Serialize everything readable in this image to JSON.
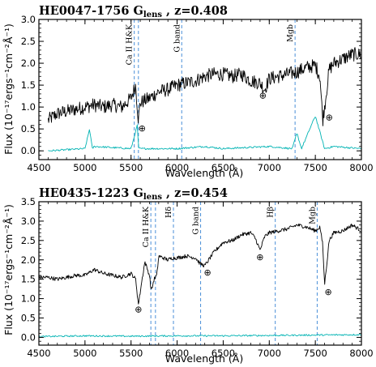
{
  "chart_data": [
    {
      "type": "line",
      "title": "HE0047-1756 G",
      "title_sub": "lens",
      "title_tail": " , z=0.408",
      "xlabel": "Wavelength (Å)",
      "ylabel": "Flux (10⁻¹⁷ergs⁻¹cm⁻²Å⁻¹)",
      "xlim": [
        4500,
        8000
      ],
      "ylim": [
        -0.2,
        3.0
      ],
      "xticks": [
        4500,
        5000,
        5500,
        6000,
        6500,
        7000,
        7500,
        8000
      ],
      "yticks": [
        0.0,
        0.5,
        1.0,
        1.5,
        2.0,
        2.5,
        3.0
      ],
      "x_tick_labels": [
        "4500",
        "5000",
        "5500",
        "6000",
        "6500",
        "7000",
        "7500",
        "8000"
      ],
      "y_tick_labels": [
        "0.0",
        "0.5",
        "1.0",
        "1.5",
        "2.0",
        "2.5",
        "3.0"
      ],
      "lines": [
        {
          "label": "Ca II H&K",
          "x": [
            5535,
            5580
          ]
        },
        {
          "label": "G band",
          "x": [
            6050
          ]
        },
        {
          "label": "Mgb",
          "x": [
            7280
          ]
        }
      ],
      "telluric": [
        {
          "symbol": "⊕",
          "x": 5620,
          "y": 0.45
        },
        {
          "symbol": "⊕",
          "x": 6930,
          "y": 1.2
        },
        {
          "symbol": "⊕",
          "x": 7650,
          "y": 0.7
        }
      ],
      "series": [
        {
          "role": "spectrum",
          "color": "#000000",
          "x": [
            4600,
            4700,
            4800,
            4900,
            5000,
            5100,
            5200,
            5300,
            5400,
            5500,
            5550,
            5580,
            5600,
            5700,
            5800,
            5900,
            6000,
            6100,
            6200,
            6300,
            6400,
            6500,
            6600,
            6700,
            6800,
            6900,
            6950,
            7000,
            7100,
            7200,
            7300,
            7400,
            7500,
            7550,
            7580,
            7600,
            7650,
            7700,
            7800,
            7900,
            8000
          ],
          "y": [
            0.7,
            0.85,
            0.9,
            0.95,
            1.0,
            1.05,
            1.0,
            1.05,
            1.0,
            1.2,
            1.5,
            0.7,
            1.1,
            1.2,
            1.35,
            1.4,
            1.5,
            1.55,
            1.6,
            1.7,
            1.75,
            1.75,
            1.7,
            1.75,
            1.6,
            1.55,
            1.4,
            1.65,
            1.7,
            1.75,
            1.8,
            1.9,
            1.95,
            1.7,
            0.7,
            1.0,
            1.85,
            2.0,
            2.1,
            2.2,
            2.2
          ]
        },
        {
          "role": "sky",
          "color": "#00b3b3",
          "x": [
            4600,
            5000,
            5050,
            5080,
            5100,
            5500,
            5570,
            5580,
            5600,
            6000,
            6300,
            6500,
            7000,
            7250,
            7300,
            7350,
            7500,
            7600,
            7700,
            8000
          ],
          "y": [
            0.0,
            0.05,
            0.5,
            0.05,
            0.1,
            0.05,
            0.6,
            0.05,
            0.05,
            0.05,
            0.1,
            0.05,
            0.1,
            0.05,
            0.4,
            0.05,
            0.8,
            0.05,
            0.1,
            0.05
          ]
        }
      ]
    },
    {
      "type": "line",
      "title": "HE0435-1223 G",
      "title_sub": "lens",
      "title_tail": " ,  z=0.454",
      "xlabel": "Wavelength (Å)",
      "ylabel": "Flux (10⁻¹⁷ergs⁻¹cm⁻²Å⁻¹)",
      "xlim": [
        4500,
        8000
      ],
      "ylim": [
        -0.2,
        3.5
      ],
      "xticks": [
        4500,
        5000,
        5500,
        6000,
        6500,
        7000,
        7500,
        8000
      ],
      "yticks": [
        0.0,
        0.5,
        1.0,
        1.5,
        2.0,
        2.5,
        3.0,
        3.5
      ],
      "x_tick_labels": [
        "4500",
        "5000",
        "5500",
        "6000",
        "6500",
        "7000",
        "7500",
        "8000"
      ],
      "y_tick_labels": [
        "0.0",
        "0.5",
        "1.0",
        "1.5",
        "2.0",
        "2.5",
        "3.0",
        "3.5"
      ],
      "lines": [
        {
          "label": "Ca II H&K",
          "x": [
            5715,
            5765
          ]
        },
        {
          "label": "Hδ",
          "x": [
            5960
          ]
        },
        {
          "label": "G band",
          "x": [
            6255
          ]
        },
        {
          "label": "Hβ",
          "x": [
            7065
          ]
        },
        {
          "label": "Mgb",
          "x": [
            7520
          ]
        }
      ],
      "telluric": [
        {
          "symbol": "⊕",
          "x": 5580,
          "y": 0.65
        },
        {
          "symbol": "⊕",
          "x": 6330,
          "y": 1.6
        },
        {
          "symbol": "⊕",
          "x": 6900,
          "y": 2.0
        },
        {
          "symbol": "⊕",
          "x": 7640,
          "y": 1.1
        }
      ],
      "series": [
        {
          "role": "spectrum",
          "color": "#000000",
          "x": [
            4500,
            4600,
            4700,
            4800,
            4900,
            5000,
            5100,
            5200,
            5300,
            5400,
            5500,
            5550,
            5580,
            5620,
            5650,
            5700,
            5720,
            5750,
            5780,
            5800,
            5850,
            5900,
            5950,
            6000,
            6100,
            6200,
            6250,
            6300,
            6400,
            6500,
            6600,
            6700,
            6800,
            6850,
            6900,
            6950,
            7000,
            7100,
            7200,
            7300,
            7400,
            7500,
            7550,
            7580,
            7600,
            7650,
            7700,
            7800,
            7900,
            8000
          ],
          "y": [
            1.55,
            1.55,
            1.5,
            1.55,
            1.6,
            1.6,
            1.75,
            1.65,
            1.6,
            1.55,
            1.65,
            1.5,
            0.85,
            1.5,
            1.95,
            1.6,
            1.2,
            1.5,
            1.6,
            2.1,
            2.05,
            2.0,
            2.05,
            2.05,
            2.1,
            2.05,
            1.9,
            1.85,
            2.2,
            2.45,
            2.5,
            2.65,
            2.7,
            2.55,
            2.25,
            2.6,
            2.7,
            2.75,
            2.8,
            2.9,
            2.85,
            2.75,
            2.85,
            2.4,
            1.35,
            2.5,
            2.7,
            2.75,
            2.9,
            2.75
          ]
        },
        {
          "role": "sky",
          "color": "#00b3b3",
          "x": [
            4500,
            5000,
            5500,
            6000,
            6500,
            7000,
            7500,
            8000
          ],
          "y": [
            0.02,
            0.04,
            0.03,
            0.04,
            0.04,
            0.05,
            0.06,
            0.07
          ]
        }
      ]
    }
  ]
}
